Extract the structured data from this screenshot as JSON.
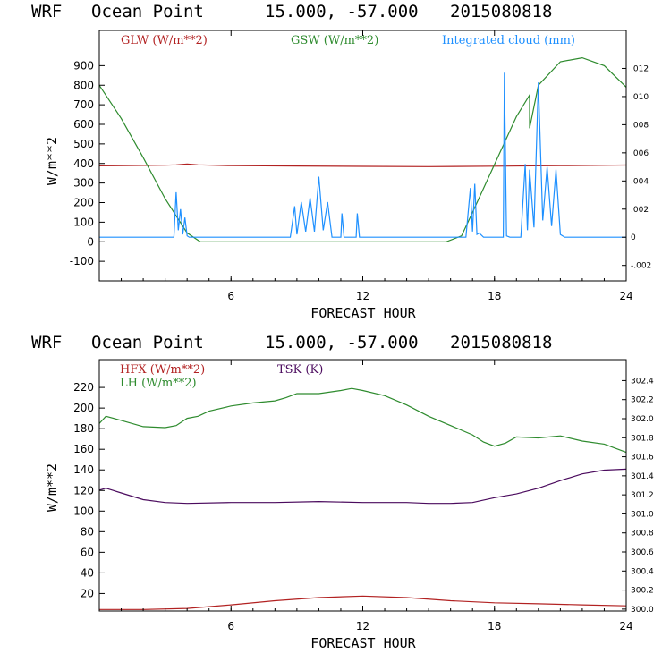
{
  "chart_data": [
    {
      "type": "line",
      "title": {
        "label": "WRF",
        "location": "Ocean Point",
        "coords": "15.000, -57.000",
        "date": "2015080818"
      },
      "xlabel": "FORECAST HOUR",
      "ylabel": "W/m**2",
      "xlim": [
        0,
        24
      ],
      "ylim": [
        -200,
        1080
      ],
      "y2lim": [
        -0.0031,
        0.0147
      ],
      "x_ticks": [
        "6",
        "12",
        "18",
        "24"
      ],
      "y_ticks": [
        "-100",
        "0",
        "100",
        "200",
        "300",
        "400",
        "500",
        "600",
        "700",
        "800",
        "900"
      ],
      "y2_ticks": [
        "-.002",
        "0",
        ".002",
        ".004",
        ".006",
        ".008",
        ".010",
        ".012"
      ],
      "legend": [
        "GLW (W/m**2)",
        "GSW (W/m**2)",
        "Integrated cloud (mm)"
      ],
      "colors": {
        "GLW": "#b22222",
        "GSW": "#2e8b2e",
        "Integrated cloud": "#1e90ff"
      },
      "series": [
        {
          "name": "GLW (W/m**2)",
          "axis": "left",
          "x": [
            0,
            3,
            3.5,
            4,
            4.5,
            6,
            9,
            12,
            15,
            18,
            21,
            24
          ],
          "values": [
            388,
            391,
            393,
            397,
            393,
            389,
            387,
            385,
            384,
            386,
            389,
            392
          ]
        },
        {
          "name": "GSW (W/m**2)",
          "axis": "left",
          "x": [
            0,
            1,
            2,
            3,
            4,
            4.6,
            15.8,
            16.5,
            17,
            18,
            19,
            19.6,
            19.6,
            20,
            21,
            22,
            23,
            24
          ],
          "values": [
            800,
            630,
            430,
            220,
            45,
            0,
            0,
            30,
            150,
            395,
            640,
            750,
            580,
            800,
            920,
            940,
            900,
            790
          ]
        },
        {
          "name": "Integrated cloud (mm)",
          "axis": "right",
          "x": [
            0,
            3.4,
            3.5,
            3.6,
            3.7,
            3.8,
            3.9,
            4.0,
            4.1,
            4.3,
            8.7,
            8.9,
            9.0,
            9.2,
            9.4,
            9.6,
            9.8,
            10.0,
            10.2,
            10.4,
            10.6,
            11.0,
            11.05,
            11.15,
            11.7,
            11.75,
            11.85,
            16.7,
            16.9,
            17.0,
            17.1,
            17.2,
            17.3,
            17.5,
            18.0,
            18.4,
            18.45,
            18.55,
            18.7,
            19.2,
            19.4,
            19.5,
            19.6,
            19.8,
            20.0,
            20.2,
            20.4,
            20.6,
            20.8,
            21.0,
            21.2,
            24
          ],
          "values": [
            0,
            0,
            0.0032,
            0.0005,
            0.002,
            0.0002,
            0.0014,
            0.0001,
            0,
            0,
            0,
            0.0022,
            0.0002,
            0.0025,
            0.0004,
            0.0028,
            0.0004,
            0.0043,
            0.0005,
            0.0025,
            0,
            0,
            0.0017,
            0,
            0,
            0.0017,
            0,
            0,
            0.0035,
            0.0004,
            0.0038,
            0.0002,
            0.0003,
            0,
            0,
            0,
            0.0117,
            0.0001,
            0,
            0,
            0.0052,
            0.0005,
            0.0048,
            0.0007,
            0.011,
            0.0012,
            0.005,
            0.0008,
            0.0048,
            0.0002,
            0,
            0
          ]
        }
      ]
    },
    {
      "type": "line",
      "title": {
        "label": "WRF",
        "location": "Ocean Point",
        "coords": "15.000, -57.000",
        "date": "2015080818"
      },
      "xlabel": "FORECAST HOUR",
      "ylabel": "W/m**2",
      "xlim": [
        0,
        24
      ],
      "ylim": [
        3,
        247
      ],
      "y2lim": [
        299.98,
        302.62
      ],
      "x_ticks": [
        "6",
        "12",
        "18",
        "24"
      ],
      "y_ticks": [
        "20",
        "40",
        "60",
        "80",
        "100",
        "120",
        "140",
        "160",
        "180",
        "200",
        "220"
      ],
      "y2_ticks": [
        "300.0",
        "300.2",
        "300.4",
        "300.6",
        "300.8",
        "301.0",
        "301.2",
        "301.4",
        "301.6",
        "301.8",
        "302.0",
        "302.2",
        "302.4"
      ],
      "legend": [
        "HFX (W/m**2)",
        "LH  (W/m**2)",
        "TSK (K)"
      ],
      "colors": {
        "HFX": "#b22222",
        "LH": "#2e8b2e",
        "TSK": "#4b0b5e"
      },
      "series": [
        {
          "name": "HFX (W/m**2)",
          "axis": "left",
          "x": [
            0,
            2,
            4,
            6,
            8,
            10,
            12,
            14,
            16,
            18,
            20,
            22,
            24
          ],
          "values": [
            4.5,
            4.5,
            5.5,
            9,
            13,
            16,
            17.5,
            16,
            13,
            11,
            10,
            9,
            8
          ]
        },
        {
          "name": "LH  (W/m**2)",
          "axis": "left",
          "x": [
            0,
            0.3,
            1,
            2,
            3,
            3.5,
            4,
            4.5,
            5,
            6,
            7,
            8,
            8.5,
            9,
            10,
            11,
            11.5,
            12,
            13,
            14,
            15,
            16,
            17,
            17.5,
            18,
            18.5,
            19,
            20,
            21,
            22,
            23,
            24
          ],
          "values": [
            185,
            192,
            188,
            182,
            181,
            183,
            190,
            192,
            197,
            202,
            205,
            207,
            210,
            214,
            214,
            217,
            219,
            217,
            212,
            203,
            192,
            183,
            174,
            167,
            163,
            166,
            172,
            171,
            173,
            168,
            165,
            157
          ]
        },
        {
          "name": "TSK (K)",
          "axis": "right",
          "x": [
            0,
            0.3,
            1,
            2,
            3,
            4,
            6,
            8,
            10,
            12,
            14,
            15,
            16,
            17,
            18,
            19,
            20,
            21,
            22,
            23,
            24
          ],
          "values": [
            301.25,
            301.27,
            301.22,
            301.15,
            301.12,
            301.11,
            301.12,
            301.12,
            301.13,
            301.12,
            301.12,
            301.11,
            301.11,
            301.12,
            301.17,
            301.21,
            301.27,
            301.35,
            301.42,
            301.46,
            301.47
          ]
        }
      ]
    }
  ]
}
